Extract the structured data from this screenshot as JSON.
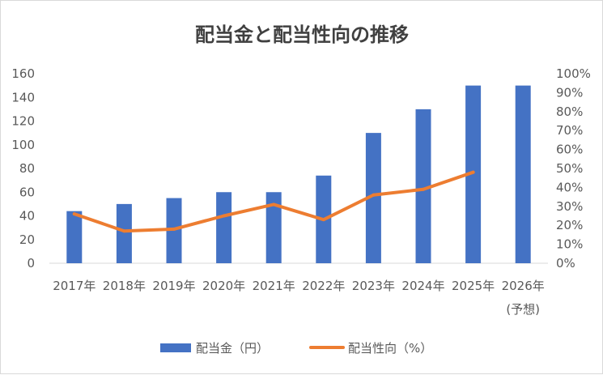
{
  "chart_data": {
    "type": "bar+line",
    "title": "配当金と配当性向の推移",
    "categories": [
      "2017年",
      "2018年",
      "2019年",
      "2020年",
      "2021年",
      "2022年",
      "2023年",
      "2024年",
      "2025年",
      "2026年"
    ],
    "category_sublabels": [
      "",
      "",
      "",
      "",
      "",
      "",
      "",
      "",
      "",
      "(予想)"
    ],
    "series": [
      {
        "name": "配当金（円）",
        "type": "bar",
        "axis": "left",
        "color": "#4472C4",
        "values": [
          44,
          50,
          55,
          60,
          60,
          74,
          110,
          130,
          150,
          150
        ]
      },
      {
        "name": "配当性向（%）",
        "type": "line",
        "axis": "right",
        "color": "#ED7D31",
        "values": [
          26,
          17,
          18,
          25,
          31,
          23,
          36,
          39,
          48,
          null
        ]
      }
    ],
    "y_left": {
      "min": 0,
      "max": 160,
      "ticks": [
        "0",
        "20",
        "40",
        "60",
        "80",
        "100",
        "120",
        "140",
        "160"
      ]
    },
    "y_right": {
      "min": 0,
      "max": 100,
      "ticks": [
        "0%",
        "10%",
        "20%",
        "30%",
        "40%",
        "50%",
        "60%",
        "70%",
        "80%",
        "90%",
        "100%"
      ]
    },
    "grid": false,
    "legend_position": "bottom"
  }
}
